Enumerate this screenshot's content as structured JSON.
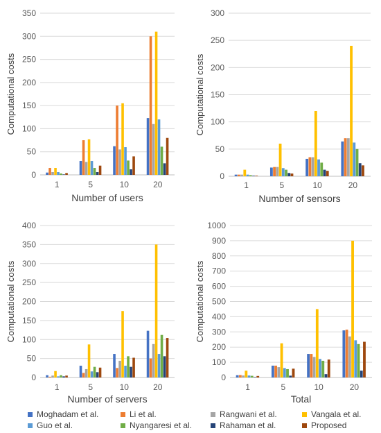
{
  "chart_data": [
    {
      "type": "bar",
      "xlabel": "Number of users",
      "ylabel": "Computational costs",
      "categories": [
        "1",
        "5",
        "10",
        "20"
      ],
      "ylim": [
        0,
        350
      ],
      "yticks": [
        0,
        50,
        100,
        150,
        200,
        250,
        300,
        350
      ],
      "series": [
        {
          "name": "Moghadam et al.",
          "values": [
            5,
            30,
            62,
            123
          ]
        },
        {
          "name": "Li et al.",
          "values": [
            15,
            75,
            150,
            300
          ]
        },
        {
          "name": "Rangwani et al.",
          "values": [
            6,
            28,
            55,
            110
          ]
        },
        {
          "name": "Vangala et al.",
          "values": [
            15,
            77,
            155,
            310
          ]
        },
        {
          "name": "Guo et al.",
          "values": [
            6,
            30,
            60,
            120
          ]
        },
        {
          "name": "Nyangaresi et al.",
          "values": [
            3,
            15,
            31,
            61
          ]
        },
        {
          "name": "Rahaman et al.",
          "values": [
            1,
            6,
            12,
            25
          ]
        },
        {
          "name": "Proposed",
          "values": [
            4,
            20,
            40,
            80
          ]
        }
      ]
    },
    {
      "type": "bar",
      "xlabel": "Number of sensors",
      "ylabel": "Computational costs",
      "categories": [
        "1",
        "5",
        "10",
        "20"
      ],
      "ylim": [
        0,
        300
      ],
      "yticks": [
        0,
        50,
        100,
        150,
        200,
        250,
        300
      ],
      "series": [
        {
          "name": "Moghadam et al.",
          "values": [
            3,
            16,
            32,
            64
          ]
        },
        {
          "name": "Li et al.",
          "values": [
            3,
            17,
            35,
            70
          ]
        },
        {
          "name": "Rangwani et al.",
          "values": [
            3,
            17,
            35,
            70
          ]
        },
        {
          "name": "Vangala et al.",
          "values": [
            12,
            60,
            120,
            240
          ]
        },
        {
          "name": "Guo et al.",
          "values": [
            3,
            15,
            31,
            62
          ]
        },
        {
          "name": "Nyangaresi et al.",
          "values": [
            2,
            12,
            25,
            50
          ]
        },
        {
          "name": "Rahaman et al.",
          "values": [
            1,
            6,
            12,
            24
          ]
        },
        {
          "name": "Proposed",
          "values": [
            1,
            5,
            10,
            20
          ]
        }
      ]
    },
    {
      "type": "bar",
      "xlabel": "Number of servers",
      "ylabel": "Computational costs",
      "categories": [
        "1",
        "5",
        "10",
        "20"
      ],
      "ylim": [
        0,
        400
      ],
      "yticks": [
        0,
        50,
        100,
        150,
        200,
        250,
        300,
        350,
        400
      ],
      "series": [
        {
          "name": "Moghadam et al.",
          "values": [
            6,
            31,
            62,
            123
          ]
        },
        {
          "name": "Li et al.",
          "values": [
            2,
            12,
            25,
            50
          ]
        },
        {
          "name": "Rangwani et al.",
          "values": [
            5,
            22,
            44,
            88
          ]
        },
        {
          "name": "Vangala et al.",
          "values": [
            17,
            87,
            175,
            350
          ]
        },
        {
          "name": "Guo et al.",
          "values": [
            3,
            16,
            31,
            62
          ]
        },
        {
          "name": "Nyangaresi et al.",
          "values": [
            6,
            28,
            56,
            112
          ]
        },
        {
          "name": "Rahaman et al.",
          "values": [
            3,
            14,
            28,
            56
          ]
        },
        {
          "name": "Proposed",
          "values": [
            5,
            26,
            52,
            104
          ]
        }
      ]
    },
    {
      "type": "bar",
      "xlabel": "Total",
      "ylabel": "Computational costs",
      "categories": [
        "1",
        "5",
        "10",
        "20"
      ],
      "ylim": [
        0,
        1000
      ],
      "yticks": [
        0,
        100,
        200,
        300,
        400,
        500,
        600,
        700,
        800,
        900,
        1000
      ],
      "series": [
        {
          "name": "Moghadam et al.",
          "values": [
            15,
            78,
            155,
            310
          ]
        },
        {
          "name": "Li et al.",
          "values": [
            16,
            78,
            155,
            315
          ]
        },
        {
          "name": "Rangwani et al.",
          "values": [
            13,
            68,
            135,
            270
          ]
        },
        {
          "name": "Vangala et al.",
          "values": [
            45,
            225,
            450,
            900
          ]
        },
        {
          "name": "Guo et al.",
          "values": [
            13,
            62,
            122,
            245
          ]
        },
        {
          "name": "Nyangaresi et al.",
          "values": [
            11,
            55,
            110,
            220
          ]
        },
        {
          "name": "Rahaman et al.",
          "values": [
            3,
            12,
            22,
            45
          ]
        },
        {
          "name": "Proposed",
          "values": [
            10,
            58,
            118,
            235
          ]
        }
      ]
    }
  ],
  "legend": {
    "items": [
      {
        "label": "Moghadam et al.",
        "color": "#4472C4"
      },
      {
        "label": "Li et al.",
        "color": "#ED7D31"
      },
      {
        "label": "Rangwani et al.",
        "color": "#A5A5A5"
      },
      {
        "label": "Vangala et al.",
        "color": "#FFC000"
      },
      {
        "label": "Guo et al.",
        "color": "#5B9BD5"
      },
      {
        "label": "Nyangaresi et al.",
        "color": "#70AD47"
      },
      {
        "label": "Rahaman et al.",
        "color": "#264478"
      },
      {
        "label": "Proposed",
        "color": "#9E480E"
      }
    ]
  }
}
